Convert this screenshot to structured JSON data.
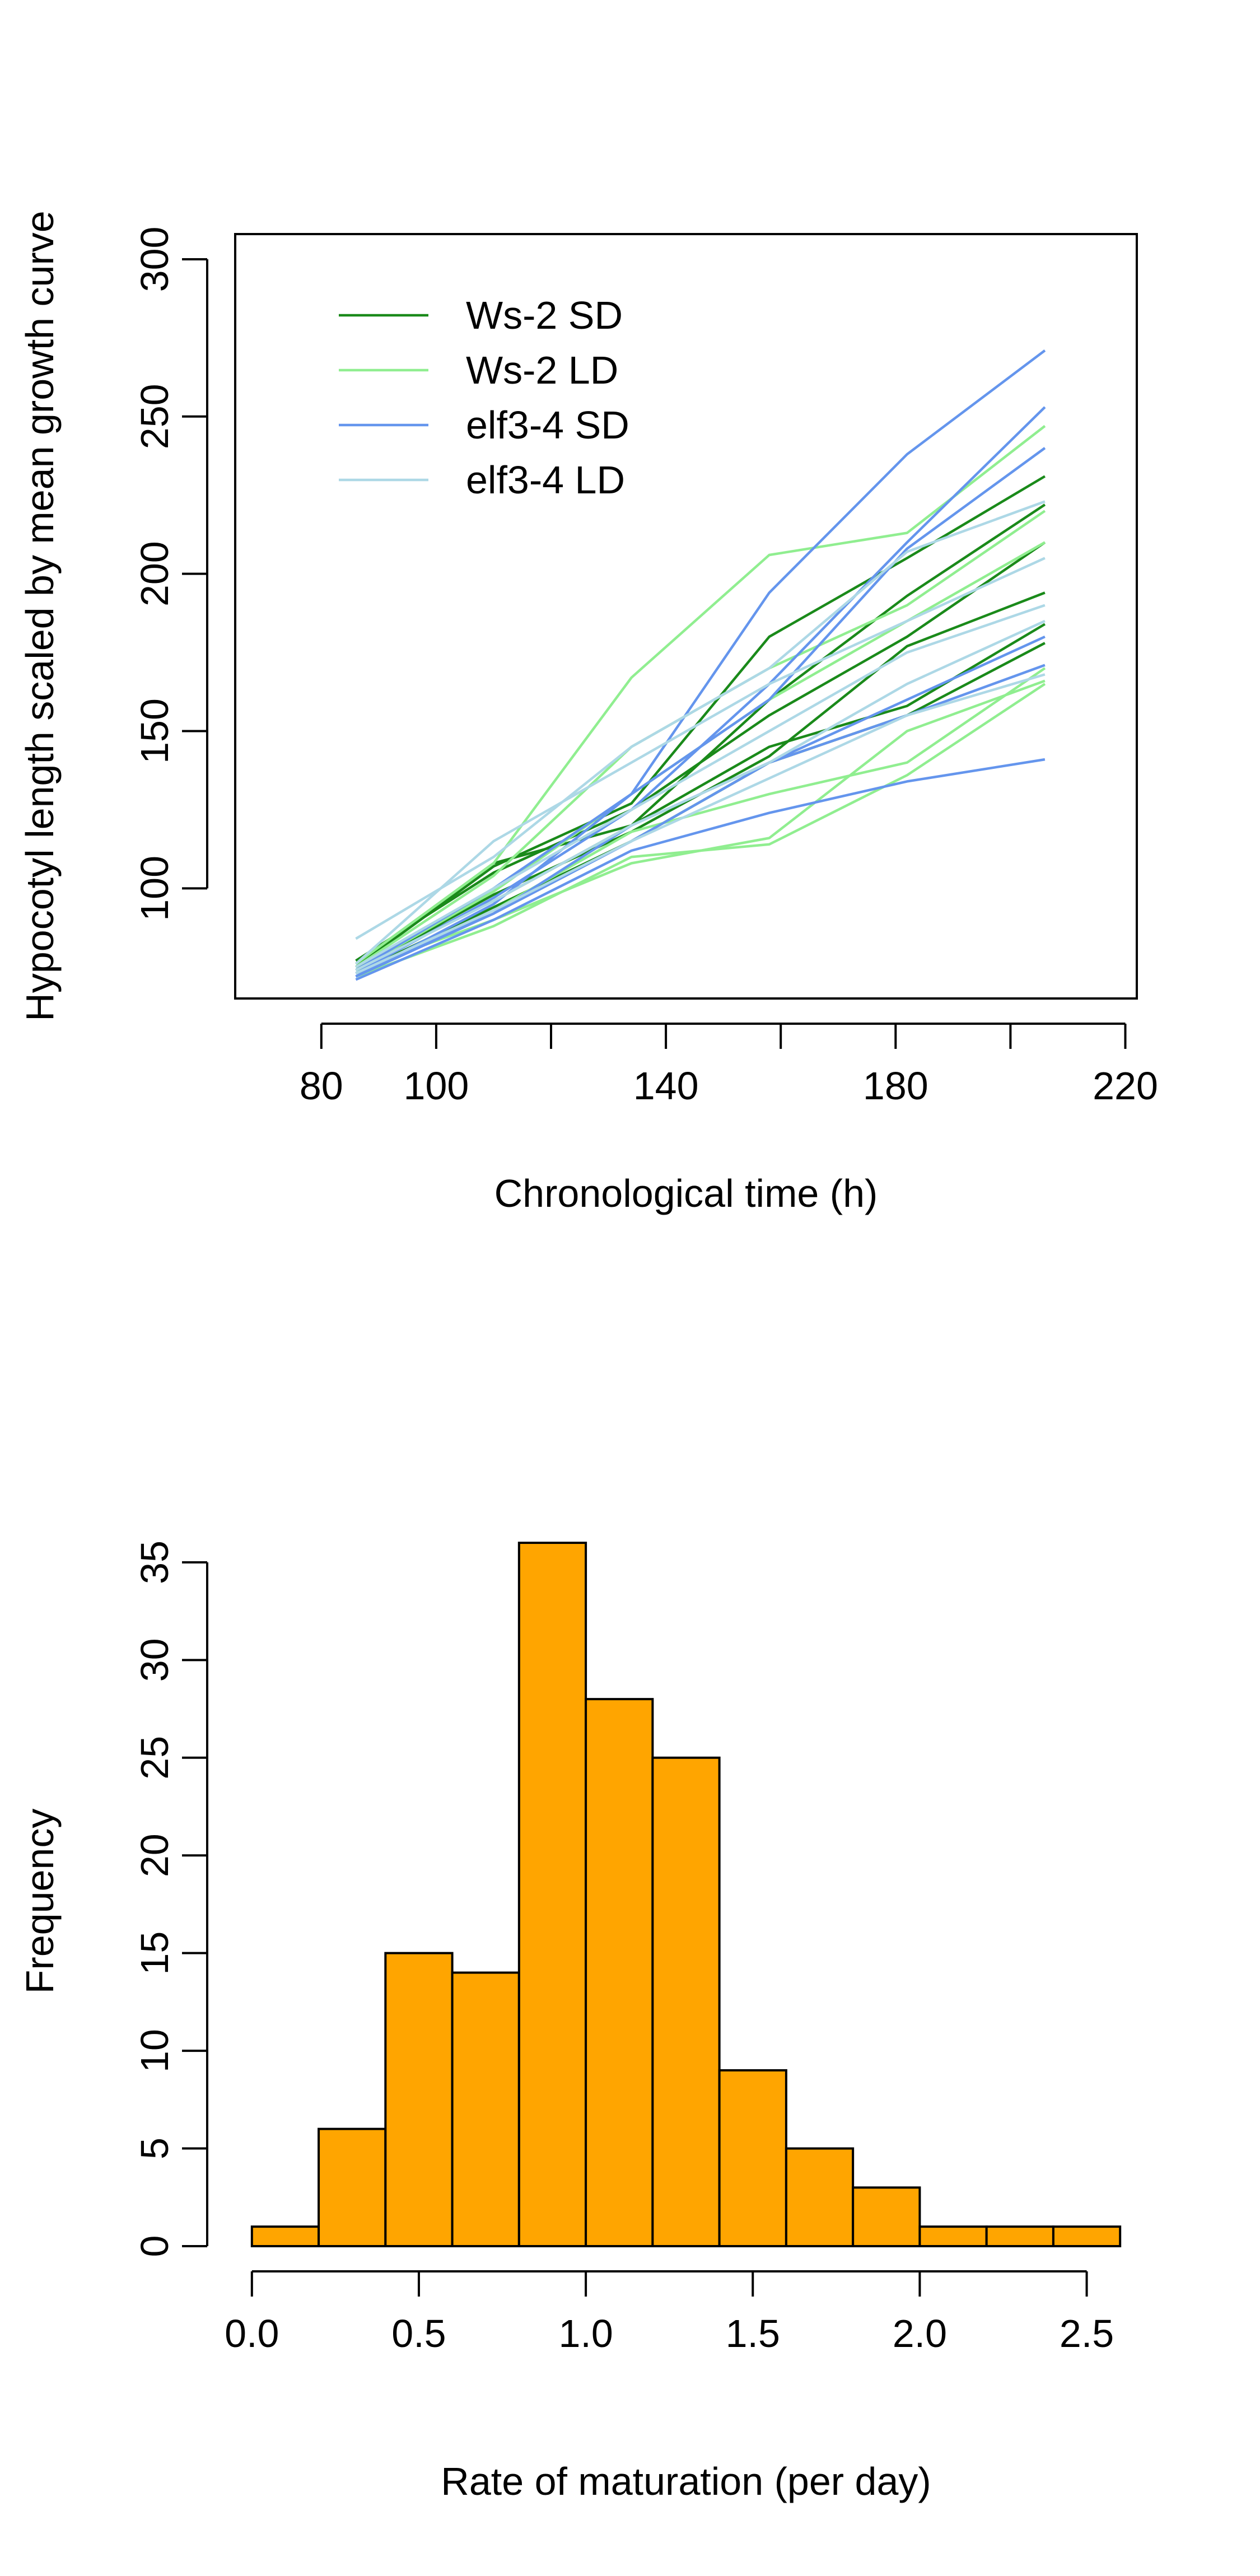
{
  "chart_data": [
    {
      "type": "line",
      "title": "",
      "xlabel": "Chronological time (h)",
      "ylabel": "Hypocotyl length scaled by mean growth curve",
      "xlim": [
        65,
        222
      ],
      "ylim": [
        65,
        308
      ],
      "x_ticks": [
        80,
        100,
        120,
        140,
        160,
        180,
        200,
        220
      ],
      "x_tick_labels": [
        "80",
        "100",
        "",
        "140",
        "",
        "180",
        "",
        "220"
      ],
      "y_ticks": [
        100,
        150,
        200,
        250,
        300
      ],
      "y_tick_labels": [
        "100",
        "150",
        "200",
        "250",
        "300"
      ],
      "grid": false,
      "legend": {
        "position": "top-left",
        "entries": [
          {
            "label": "Ws-2 SD",
            "color": "#1a8a1a"
          },
          {
            "label": "Ws-2 LD",
            "color": "#90ee90"
          },
          {
            "label": "elf3-4 SD",
            "color": "#6495ed"
          },
          {
            "label": "elf3-4 LD",
            "color": "#add8e6"
          }
        ]
      },
      "x": [
        86,
        110,
        134,
        158,
        182,
        206
      ],
      "series": [
        {
          "group": "Ws-2 SD",
          "color": "#1a8a1a",
          "values": [
            75,
            107,
            127,
            180,
            205,
            231
          ]
        },
        {
          "group": "Ws-2 SD",
          "color": "#1a8a1a",
          "values": [
            76,
            108,
            120,
            160,
            193,
            222
          ]
        },
        {
          "group": "Ws-2 SD",
          "color": "#1a8a1a",
          "values": [
            77,
            105,
            125,
            155,
            180,
            210
          ]
        },
        {
          "group": "Ws-2 SD",
          "color": "#1a8a1a",
          "values": [
            74,
            98,
            118,
            142,
            177,
            194
          ]
        },
        {
          "group": "Ws-2 SD",
          "color": "#1a8a1a",
          "values": [
            75,
            96,
            120,
            145,
            158,
            184
          ]
        },
        {
          "group": "Ws-2 SD",
          "color": "#1a8a1a",
          "values": [
            73,
            94,
            115,
            140,
            155,
            178
          ]
        },
        {
          "group": "Ws-2 LD",
          "color": "#90ee90",
          "values": [
            76,
            108,
            167,
            206,
            213,
            247
          ]
        },
        {
          "group": "Ws-2 LD",
          "color": "#90ee90",
          "values": [
            75,
            104,
            145,
            170,
            190,
            220
          ]
        },
        {
          "group": "Ws-2 LD",
          "color": "#90ee90",
          "values": [
            74,
            99,
            130,
            160,
            185,
            210
          ]
        },
        {
          "group": "Ws-2 LD",
          "color": "#90ee90",
          "values": [
            73,
            93,
            118,
            130,
            140,
            170
          ]
        },
        {
          "group": "Ws-2 LD",
          "color": "#90ee90",
          "values": [
            74,
            90,
            108,
            116,
            150,
            166
          ]
        },
        {
          "group": "Ws-2 LD",
          "color": "#90ee90",
          "values": [
            72,
            88,
            110,
            114,
            136,
            165
          ]
        },
        {
          "group": "elf3-4 SD",
          "color": "#6495ed",
          "values": [
            74,
            100,
            130,
            194,
            238,
            271
          ]
        },
        {
          "group": "elf3-4 SD",
          "color": "#6495ed",
          "values": [
            73,
            97,
            125,
            165,
            210,
            253
          ]
        },
        {
          "group": "elf3-4 SD",
          "color": "#6495ed",
          "values": [
            72,
            95,
            130,
            160,
            208,
            240
          ]
        },
        {
          "group": "elf3-4 SD",
          "color": "#6495ed",
          "values": [
            73,
            92,
            120,
            140,
            160,
            180
          ]
        },
        {
          "group": "elf3-4 SD",
          "color": "#6495ed",
          "values": [
            72,
            92,
            115,
            140,
            155,
            171
          ]
        },
        {
          "group": "elf3-4 SD",
          "color": "#6495ed",
          "values": [
            71,
            90,
            112,
            124,
            134,
            141
          ]
        },
        {
          "group": "elf3-4 LD",
          "color": "#add8e6",
          "values": [
            84,
            110,
            145,
            170,
            207,
            223
          ]
        },
        {
          "group": "elf3-4 LD",
          "color": "#add8e6",
          "values": [
            76,
            115,
            140,
            165,
            185,
            205
          ]
        },
        {
          "group": "elf3-4 LD",
          "color": "#add8e6",
          "values": [
            75,
            100,
            125,
            150,
            175,
            190
          ]
        },
        {
          "group": "elf3-4 LD",
          "color": "#add8e6",
          "values": [
            74,
            96,
            120,
            140,
            165,
            185
          ]
        },
        {
          "group": "elf3-4 LD",
          "color": "#add8e6",
          "values": [
            73,
            93,
            115,
            135,
            155,
            168
          ]
        }
      ]
    },
    {
      "type": "bar",
      "title": "",
      "xlabel": "Rate of maturation (per day)",
      "ylabel": "Frequency",
      "xlim": [
        -0.05,
        2.65
      ],
      "ylim": [
        0,
        36
      ],
      "bins": [
        [
          0.0,
          0.2
        ],
        [
          0.2,
          0.4
        ],
        [
          0.4,
          0.6
        ],
        [
          0.6,
          0.8
        ],
        [
          0.8,
          1.0
        ],
        [
          1.0,
          1.2
        ],
        [
          1.2,
          1.4
        ],
        [
          1.4,
          1.6
        ],
        [
          1.6,
          1.8
        ],
        [
          1.8,
          2.0
        ],
        [
          2.0,
          2.2
        ],
        [
          2.2,
          2.4
        ],
        [
          2.4,
          2.6
        ]
      ],
      "values": [
        1,
        6,
        15,
        14,
        36,
        28,
        25,
        9,
        5,
        3,
        1,
        1,
        1
      ],
      "bar_color": "#ffa500",
      "x_ticks": [
        0.0,
        0.5,
        1.0,
        1.5,
        2.0,
        2.5
      ],
      "x_tick_labels": [
        "0.0",
        "0.5",
        "1.0",
        "1.5",
        "2.0",
        "2.5"
      ],
      "y_ticks": [
        0,
        5,
        10,
        15,
        20,
        25,
        30,
        35
      ],
      "y_tick_labels": [
        "0",
        "5",
        "10",
        "15",
        "20",
        "25",
        "30",
        "35"
      ],
      "grid": false
    }
  ]
}
